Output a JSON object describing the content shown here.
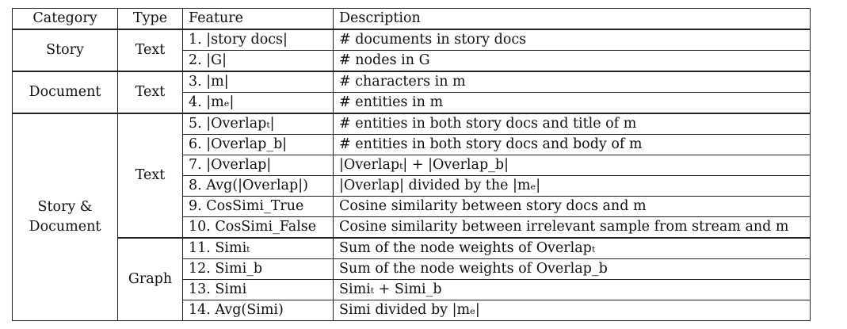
{
  "table": {
    "headers": [
      "Category",
      "Type",
      "Feature",
      "Description"
    ],
    "groups": [
      {
        "category": "Story",
        "types": [
          {
            "type": "Text",
            "rows": [
              {
                "feature": "1. |story docs|",
                "description": "# documents in story docs"
              },
              {
                "feature": "2. |G|",
                "description": "# nodes in G"
              }
            ]
          }
        ]
      },
      {
        "category": "Document",
        "types": [
          {
            "type": "Text",
            "rows": [
              {
                "feature": "3. |m|",
                "description": "# characters in m"
              },
              {
                "feature": "4. |mₑ|",
                "description": "# entities in m"
              }
            ]
          }
        ]
      },
      {
        "category": "Story &\nDocument",
        "types": [
          {
            "type": "Text",
            "rows": [
              {
                "feature": "5. |Overlapₜ|",
                "description": "# entities in both story docs and title of m"
              },
              {
                "feature": "6. |Overlap_b|",
                "description": "# entities in both story docs and body of m"
              },
              {
                "feature": "7. |Overlap|",
                "description": "|Overlapₜ| + |Overlap_b|"
              },
              {
                "feature": "8. Avg(|Overlap|)",
                "description": "|Overlap| divided by the |mₑ|"
              },
              {
                "feature": "9. CosSimi_True",
                "description": "Cosine similarity between story docs and m"
              },
              {
                "feature": "10. CosSimi_False",
                "description": "Cosine similarity between irrelevant sample from stream and m"
              }
            ]
          },
          {
            "type": "Graph",
            "rows": [
              {
                "feature": "11. Simiₜ",
                "description": "Sum of the node weights of Overlapₜ"
              },
              {
                "feature": "12. Simi_b",
                "description": "Sum of the node weights of Overlap_b"
              },
              {
                "feature": "13. Simi",
                "description": "Simiₜ + Simi_b"
              },
              {
                "feature": "14. Avg(Simi)",
                "description": "Simi divided by |mₑ|"
              }
            ]
          }
        ]
      }
    ]
  }
}
